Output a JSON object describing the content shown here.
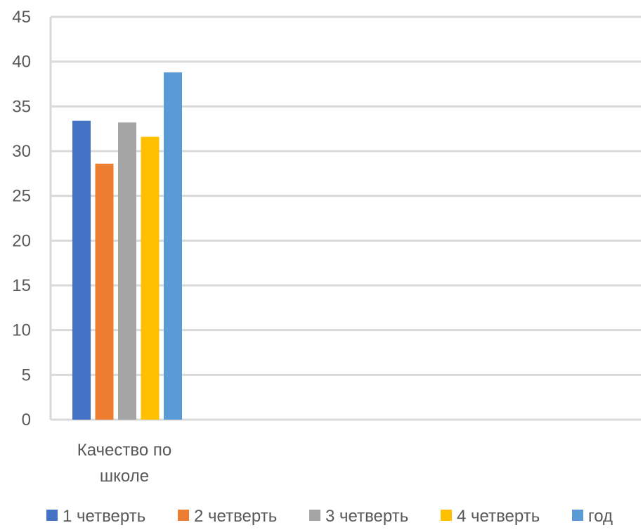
{
  "chart_data": {
    "type": "bar",
    "categories": [
      "Качество по школе"
    ],
    "category_lines": [
      [
        "Качество по",
        "школе"
      ]
    ],
    "series": [
      {
        "name": "1 четверть",
        "values": [
          33.4
        ],
        "color": "#4472C4"
      },
      {
        "name": "2 четверть",
        "values": [
          28.6
        ],
        "color": "#ED7D31"
      },
      {
        "name": "3 четверть",
        "values": [
          33.2
        ],
        "color": "#A5A5A5"
      },
      {
        "name": "4 четверть",
        "values": [
          31.6
        ],
        "color": "#FFC000"
      },
      {
        "name": "год",
        "values": [
          38.8
        ],
        "color": "#5B9BD5"
      }
    ],
    "yticks": [
      0,
      5,
      10,
      15,
      20,
      25,
      30,
      35,
      40,
      45
    ],
    "ylim": [
      0,
      45
    ],
    "grid": true,
    "legend": "bottom"
  }
}
